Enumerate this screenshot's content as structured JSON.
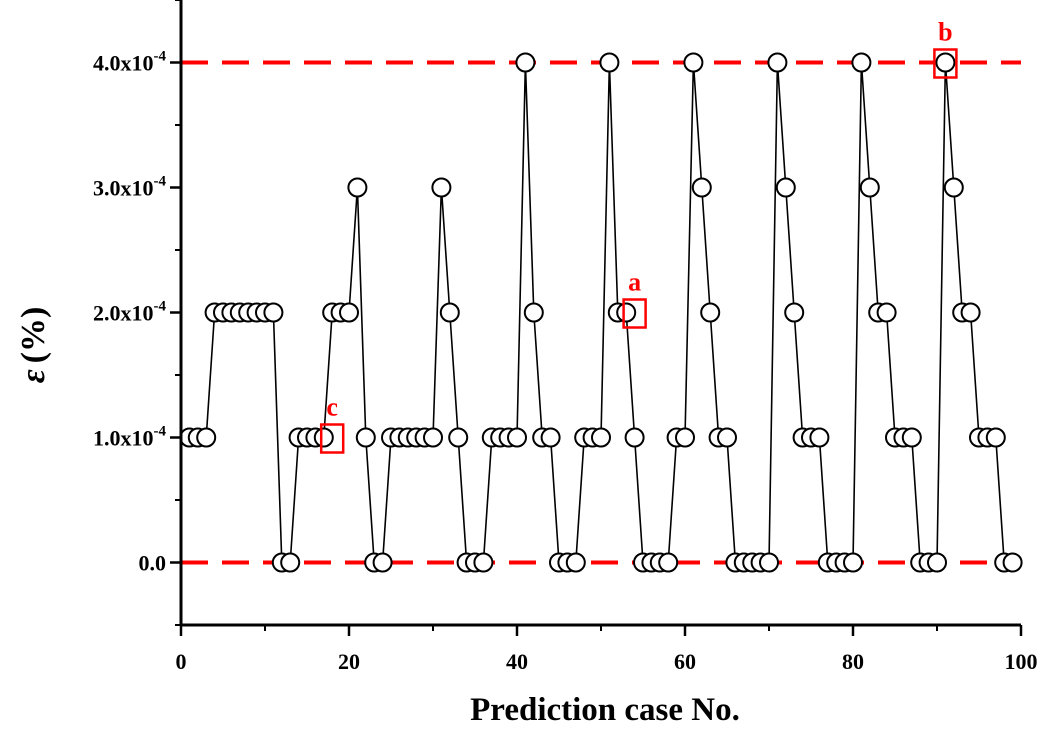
{
  "chart_data": {
    "type": "line",
    "xlabel": "Prediction case No.",
    "ylabel_symbol": "ε",
    "ylabel_unit": "(%)",
    "xlim": [
      0,
      100
    ],
    "ylim": [
      -5e-05,
      0.00045
    ],
    "x_ticks": [
      {
        "value": 0,
        "label": "0"
      },
      {
        "value": 20,
        "label": "20"
      },
      {
        "value": 40,
        "label": "40"
      },
      {
        "value": 60,
        "label": "60"
      },
      {
        "value": 80,
        "label": "80"
      },
      {
        "value": 100,
        "label": "100"
      }
    ],
    "y_ticks": [
      {
        "value": 0,
        "label": "0.0",
        "exp": ""
      },
      {
        "value": 0.0001,
        "label": "1.0x10",
        "exp": "-4"
      },
      {
        "value": 0.0002,
        "label": "2.0x10",
        "exp": "-4"
      },
      {
        "value": 0.0003,
        "label": "3.0x10",
        "exp": "-4"
      },
      {
        "value": 0.0004,
        "label": "4.0x10",
        "exp": "-4"
      }
    ],
    "x_minor_step": 10,
    "y_minor_step": 5e-05,
    "grid": false,
    "reference_lines": [
      {
        "y": 0.0004,
        "color": "#ff0000",
        "style": "dashed"
      },
      {
        "y": 0,
        "color": "#ff0000",
        "style": "dashed"
      }
    ],
    "series": [
      {
        "marker": "open-circle",
        "color": "#000000",
        "points": [
          [
            1,
            0.0001
          ],
          [
            2,
            0.0001
          ],
          [
            3,
            0.0001
          ],
          [
            4,
            0.0002
          ],
          [
            5,
            0.0002
          ],
          [
            6,
            0.0002
          ],
          [
            7,
            0.0002
          ],
          [
            8,
            0.0002
          ],
          [
            9,
            0.0002
          ],
          [
            10,
            0.0002
          ],
          [
            11,
            0.0002
          ],
          [
            12,
            0
          ],
          [
            13,
            0
          ],
          [
            14,
            0.0001
          ],
          [
            15,
            0.0001
          ],
          [
            16,
            0.0001
          ],
          [
            17,
            0.0001
          ],
          [
            18,
            0.0002
          ],
          [
            19,
            0.0002
          ],
          [
            20,
            0.0002
          ],
          [
            21,
            0.0003
          ],
          [
            22,
            0.0001
          ],
          [
            23,
            0
          ],
          [
            24,
            0
          ],
          [
            25,
            0.0001
          ],
          [
            26,
            0.0001
          ],
          [
            27,
            0.0001
          ],
          [
            28,
            0.0001
          ],
          [
            29,
            0.0001
          ],
          [
            30,
            0.0001
          ],
          [
            31,
            0.0003
          ],
          [
            32,
            0.0002
          ],
          [
            33,
            0.0001
          ],
          [
            34,
            0
          ],
          [
            35,
            0
          ],
          [
            36,
            0
          ],
          [
            37,
            0.0001
          ],
          [
            38,
            0.0001
          ],
          [
            39,
            0.0001
          ],
          [
            40,
            0.0001
          ],
          [
            41,
            0.0004
          ],
          [
            42,
            0.0002
          ],
          [
            43,
            0.0001
          ],
          [
            44,
            0.0001
          ],
          [
            45,
            0
          ],
          [
            46,
            0
          ],
          [
            47,
            0
          ],
          [
            48,
            0.0001
          ],
          [
            49,
            0.0001
          ],
          [
            50,
            0.0001
          ],
          [
            51,
            0.0004
          ],
          [
            52,
            0.0002
          ],
          [
            53,
            0.0002
          ],
          [
            54,
            0.0001
          ],
          [
            55,
            0
          ],
          [
            56,
            0
          ],
          [
            57,
            0
          ],
          [
            58,
            0
          ],
          [
            59,
            0.0001
          ],
          [
            60,
            0.0001
          ],
          [
            61,
            0.0004
          ],
          [
            62,
            0.0003
          ],
          [
            63,
            0.0002
          ],
          [
            64,
            0.0001
          ],
          [
            65,
            0.0001
          ],
          [
            66,
            0
          ],
          [
            67,
            0
          ],
          [
            68,
            0
          ],
          [
            69,
            0
          ],
          [
            70,
            0
          ],
          [
            71,
            0.0004
          ],
          [
            72,
            0.0003
          ],
          [
            73,
            0.0002
          ],
          [
            74,
            0.0001
          ],
          [
            75,
            0.0001
          ],
          [
            76,
            0.0001
          ],
          [
            77,
            0
          ],
          [
            78,
            0
          ],
          [
            79,
            0
          ],
          [
            80,
            0
          ],
          [
            81,
            0.0004
          ],
          [
            82,
            0.0003
          ],
          [
            83,
            0.0002
          ],
          [
            84,
            0.0002
          ],
          [
            85,
            0.0001
          ],
          [
            86,
            0.0001
          ],
          [
            87,
            0.0001
          ],
          [
            88,
            0
          ],
          [
            89,
            0
          ],
          [
            90,
            0
          ],
          [
            91,
            0.0004
          ],
          [
            92,
            0.0003
          ],
          [
            93,
            0.0002
          ],
          [
            94,
            0.0002
          ],
          [
            95,
            0.0001
          ],
          [
            96,
            0.0001
          ],
          [
            97,
            0.0001
          ],
          [
            98,
            0
          ],
          [
            99,
            0
          ]
        ]
      }
    ],
    "annotations": [
      {
        "text": "a",
        "x": 54,
        "y": 0.0002,
        "color": "#ff0000",
        "box": true
      },
      {
        "text": "b",
        "x": 91,
        "y": 0.0004,
        "color": "#ff0000",
        "box": true
      },
      {
        "text": "c",
        "x": 18,
        "y": 0.0001,
        "color": "#ff0000",
        "box": true
      }
    ]
  }
}
